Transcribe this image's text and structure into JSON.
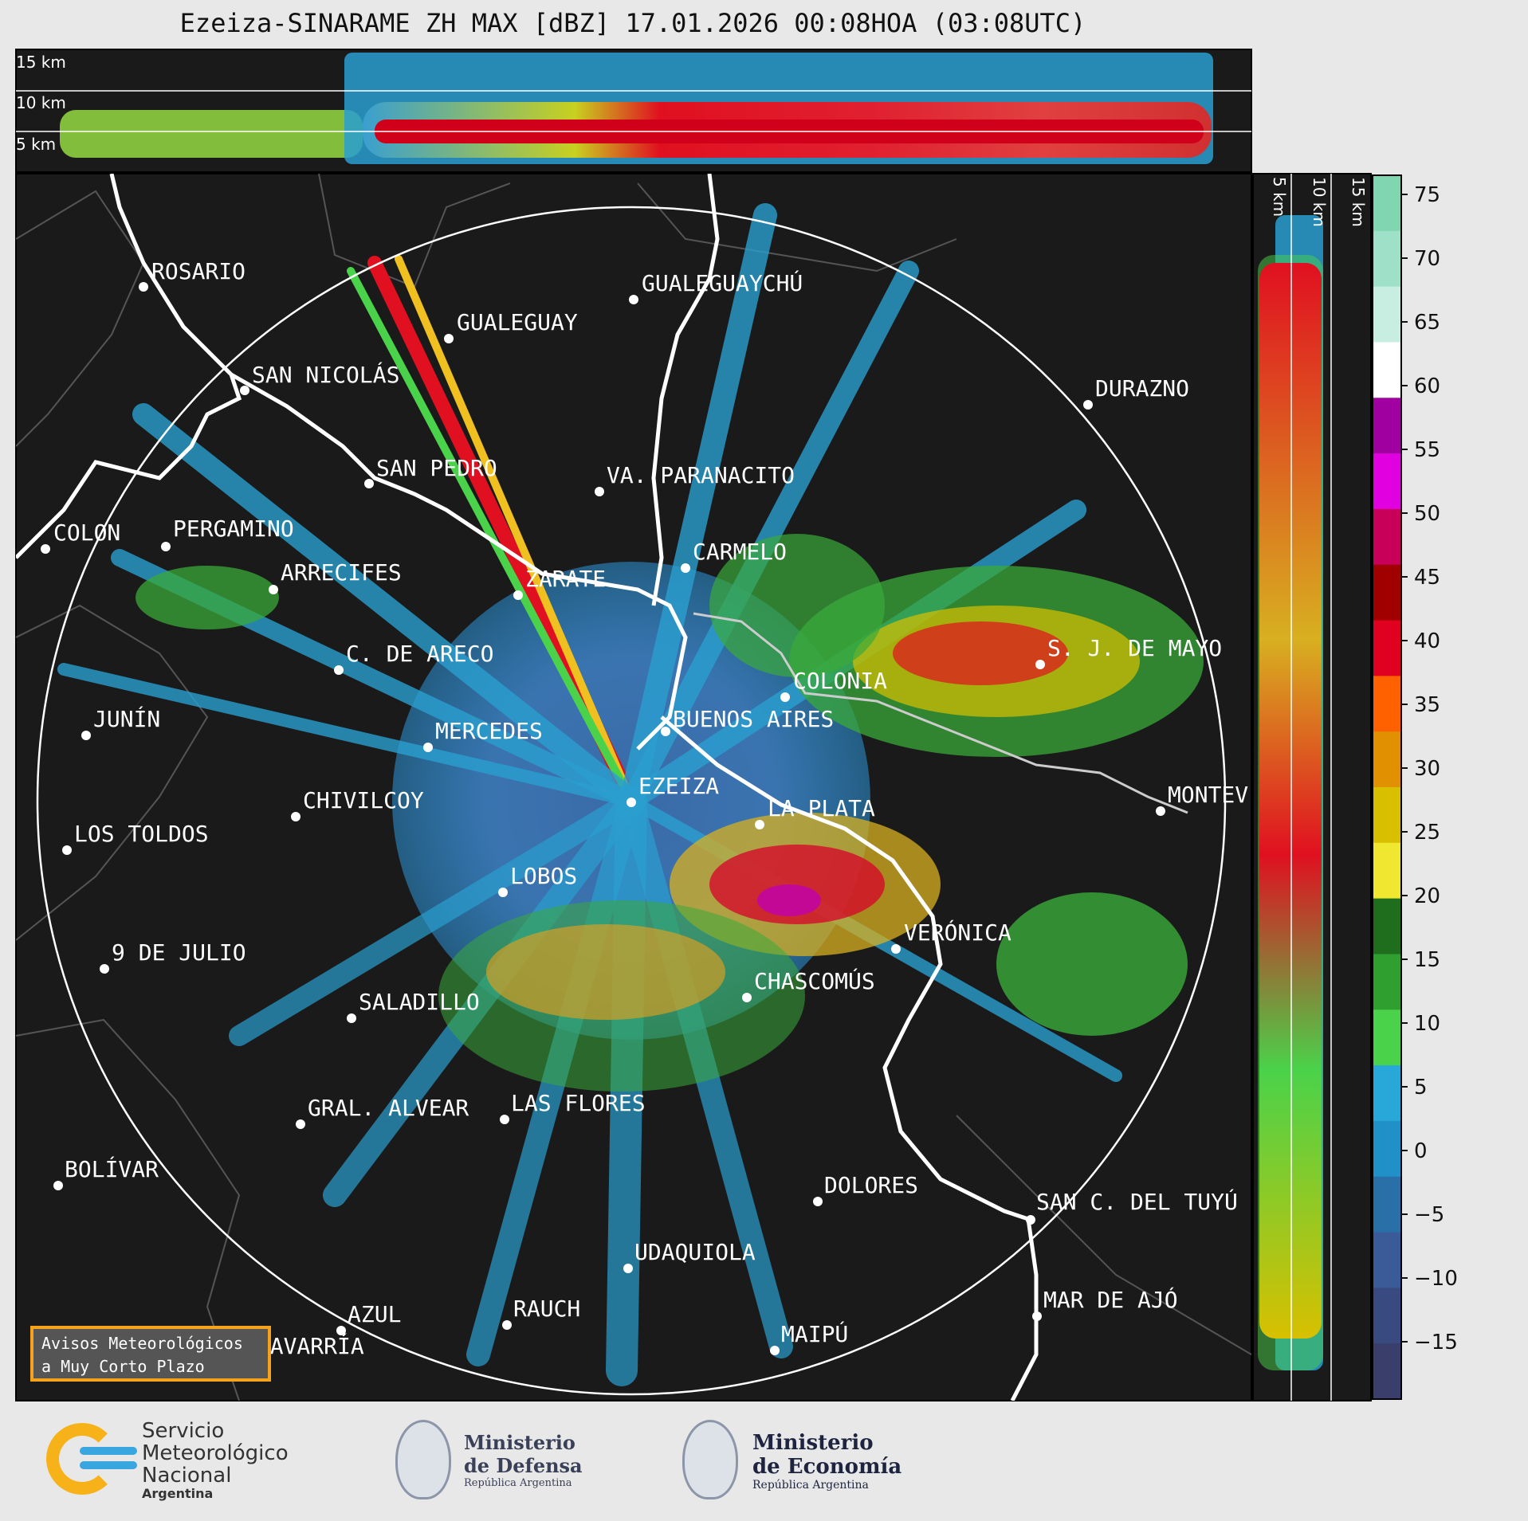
{
  "title": "Ezeiza-SINARAME ZH MAX [dBZ] 17.01.2026 00:08HOA (03:08UTC)",
  "top_profile": {
    "labels": [
      "15 km",
      "10 km",
      "5 km"
    ]
  },
  "side_profile": {
    "labels": [
      "5 km",
      "10 km",
      "15 km"
    ]
  },
  "colorbar": {
    "ticks": [
      "75",
      "70",
      "65",
      "60",
      "55",
      "50",
      "45",
      "40",
      "35",
      "30",
      "25",
      "20",
      "15",
      "10",
      "5",
      "0",
      "−5",
      "−10",
      "−15"
    ],
    "colors": [
      "#7fd6b0",
      "#9fe0c8",
      "#c7eee0",
      "#ffffff",
      "#a000a0",
      "#e000e0",
      "#c8005a",
      "#a00000",
      "#e00020",
      "#ff6000",
      "#e09000",
      "#d8c000",
      "#f0e830",
      "#1e6e1e",
      "#2f9f2f",
      "#4ad24a",
      "#28a8d8",
      "#2090c8",
      "#2a70a8",
      "#3a5a98",
      "#384a80",
      "#3a3e6a"
    ]
  },
  "cities": [
    {
      "name": "ROSARIO"
    },
    {
      "name": "GUALEGUAYCHÚ"
    },
    {
      "name": "GUALEGUAY"
    },
    {
      "name": "SAN NICOLÁS"
    },
    {
      "name": "DURAZNO"
    },
    {
      "name": "SAN PEDRO"
    },
    {
      "name": "VA. PARANACITO"
    },
    {
      "name": "COLON"
    },
    {
      "name": "PERGAMINO"
    },
    {
      "name": "CARMELO"
    },
    {
      "name": "ARRECIFES"
    },
    {
      "name": "ZARATE"
    },
    {
      "name": "C. DE ARECO"
    },
    {
      "name": "S. J. DE MAYO"
    },
    {
      "name": "COLONIA"
    },
    {
      "name": "JUNÍN"
    },
    {
      "name": "BUENOS AIRES"
    },
    {
      "name": "MERCEDES"
    },
    {
      "name": "EZEIZA"
    },
    {
      "name": "MONTEV"
    },
    {
      "name": "CHIVILCOY"
    },
    {
      "name": "LA PLATA"
    },
    {
      "name": "LOS TOLDOS"
    },
    {
      "name": "LOBOS"
    },
    {
      "name": "VERÓNICA"
    },
    {
      "name": "9 DE JULIO"
    },
    {
      "name": "CHASCOMÚS"
    },
    {
      "name": "SALADILLO"
    },
    {
      "name": "GRAL. ALVEAR"
    },
    {
      "name": "LAS FLORES"
    },
    {
      "name": "BOLÍVAR"
    },
    {
      "name": "DOLORES"
    },
    {
      "name": "SAN C. DEL TUYÚ"
    },
    {
      "name": "UDAQUIOLA"
    },
    {
      "name": "AZUL"
    },
    {
      "name": "RAUCH"
    },
    {
      "name": "MAR DE AJÓ"
    },
    {
      "name": "OLAVARRÍA"
    },
    {
      "name": "MAIPÚ"
    }
  ],
  "notice": {
    "line1": "Avisos Meteorológicos",
    "line2": "a Muy Corto Plazo"
  },
  "footer": {
    "smn": [
      "Servicio",
      "Meteorológico",
      "Nacional",
      "Argentina"
    ],
    "defensa": [
      "Ministerio",
      "de Defensa",
      "República Argentina"
    ],
    "economia": [
      "Ministerio",
      "de Economía",
      "República Argentina"
    ]
  }
}
